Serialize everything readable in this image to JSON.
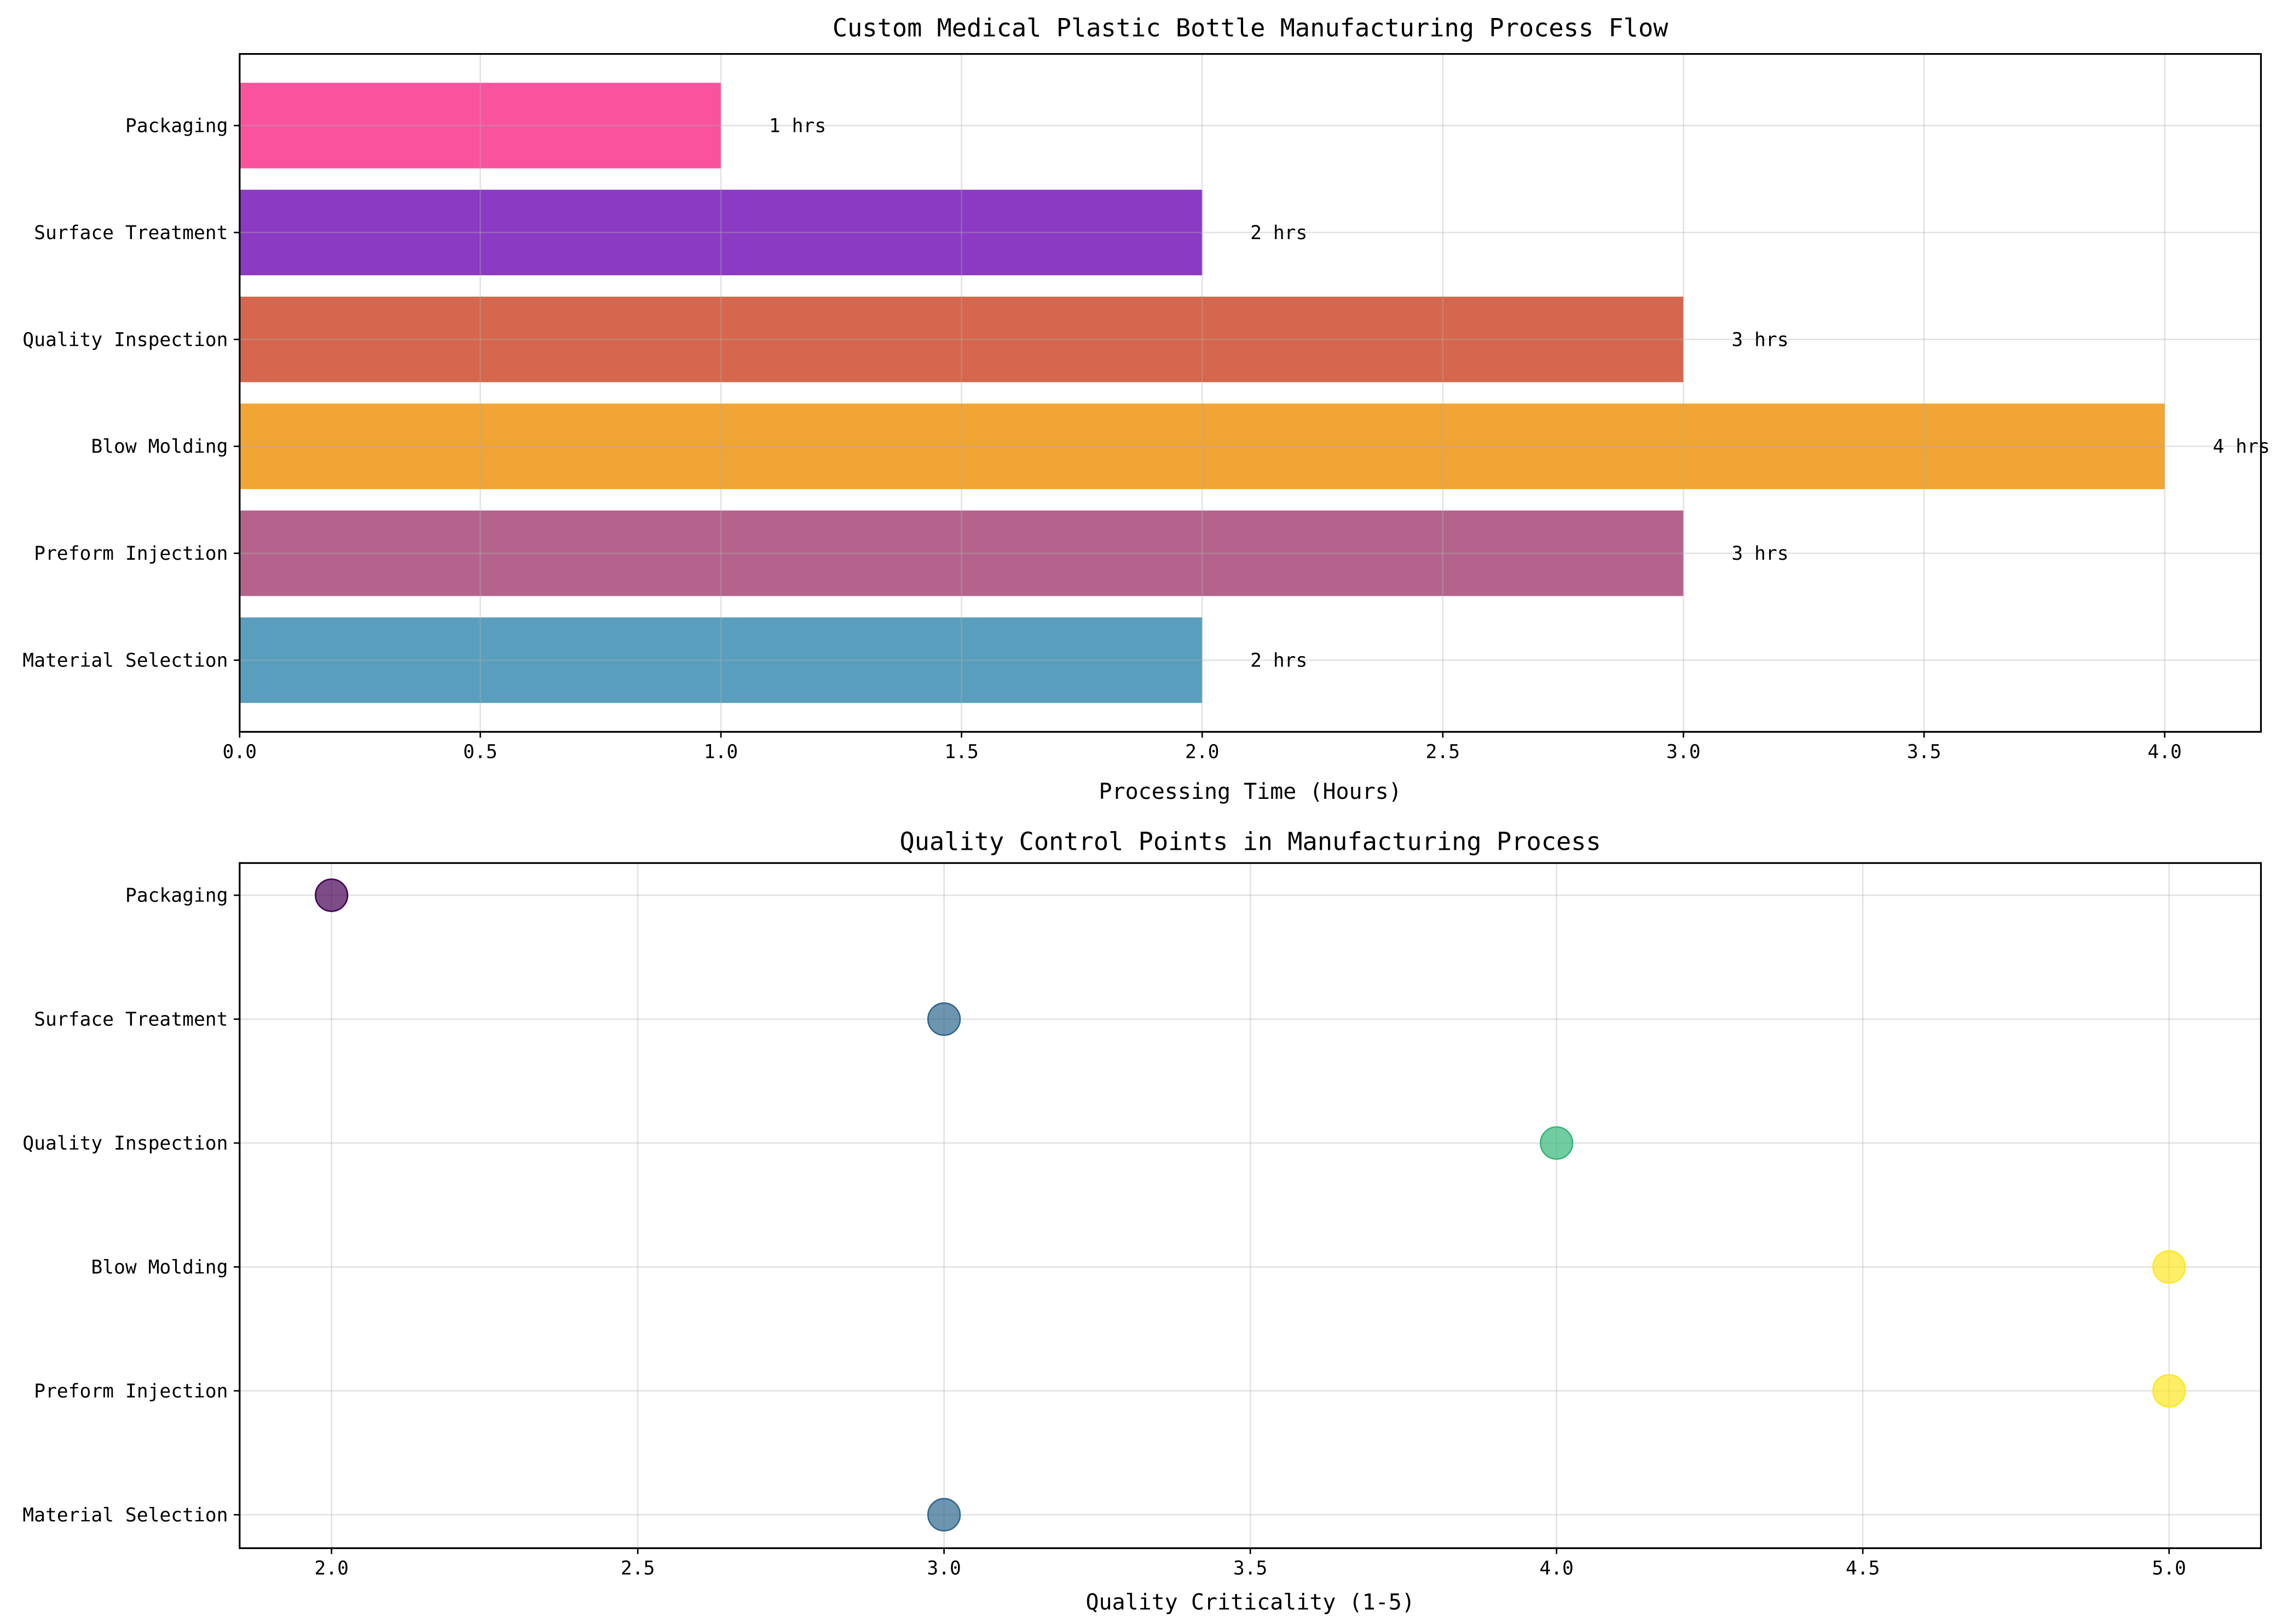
{
  "chart_data": [
    {
      "type": "bar",
      "orientation": "horizontal",
      "title": "Custom Medical Plastic Bottle Manufacturing Process Flow",
      "xlabel": "Processing Time (Hours)",
      "ylabel": "",
      "categories": [
        "Material Selection",
        "Preform Injection",
        "Blow Molding",
        "Quality Inspection",
        "Surface Treatment",
        "Packaging"
      ],
      "values": [
        2,
        3,
        4,
        3,
        2,
        1
      ],
      "data_labels": [
        "2 hrs",
        "3 hrs",
        "4 hrs",
        "3 hrs",
        "2 hrs",
        "1 hrs"
      ],
      "colors": [
        "#5A9EBD",
        "#B4648C",
        "#F0A534",
        "#D4674D",
        "#8B3AC4",
        "#F9539E"
      ],
      "xlim": [
        0,
        4.2
      ],
      "xticks": [
        "0.0",
        "0.5",
        "1.0",
        "1.5",
        "2.0",
        "2.5",
        "3.0",
        "3.5",
        "4.0"
      ],
      "grid": true
    },
    {
      "type": "scatter",
      "title": "Quality Control Points in Manufacturing Process",
      "xlabel": "Quality Criticality (1-5)",
      "ylabel": "",
      "categories": [
        "Material Selection",
        "Preform Injection",
        "Blow Molding",
        "Quality Inspection",
        "Surface Treatment",
        "Packaging"
      ],
      "values": [
        3,
        5,
        5,
        4,
        3,
        2
      ],
      "colormap": "viridis",
      "colors": [
        "#31688E",
        "#FDE725",
        "#FDE725",
        "#35B779",
        "#31688E",
        "#440154"
      ],
      "xlim": [
        1.85,
        5.15
      ],
      "xticks": [
        "2.0",
        "2.5",
        "3.0",
        "3.5",
        "4.0",
        "4.5",
        "5.0"
      ],
      "grid": true
    }
  ]
}
